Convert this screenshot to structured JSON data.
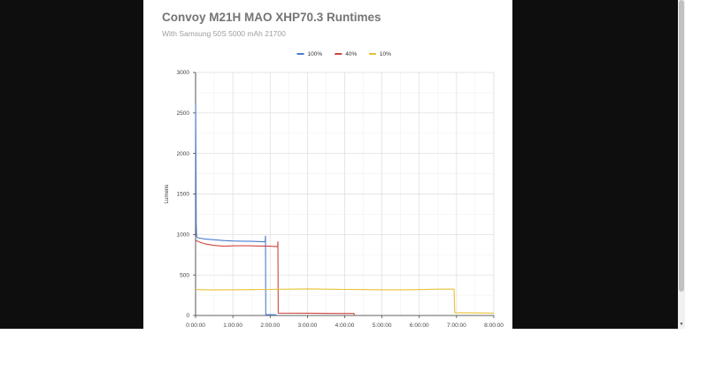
{
  "chart_data": {
    "type": "line",
    "title": "Convoy M21H MAO XHP70.3 Runtimes",
    "subtitle": "With Samsung 50S 5000 mAh 21700",
    "xlabel": "",
    "ylabel": "Lumens",
    "xlim": [
      "0:00:00",
      "8:00:00"
    ],
    "ylim": [
      0,
      3000
    ],
    "x_ticks": [
      "0:00:00",
      "1:00:00",
      "2:00:00",
      "3:00:00",
      "4:00:00",
      "5:00:00",
      "6:00:00",
      "7:00:00",
      "8:00:00"
    ],
    "y_ticks": [
      "0",
      "500",
      "1000",
      "1500",
      "2000",
      "2500",
      "3000"
    ],
    "grid": true,
    "legend_position": "top-center",
    "series": [
      {
        "name": "100%",
        "color": "#4a7bd0",
        "points": [
          [
            "0:00:00",
            2600
          ],
          [
            "0:00:05",
            2560
          ],
          [
            "0:00:20",
            2300
          ],
          [
            "0:00:40",
            1700
          ],
          [
            "0:01:00",
            1150
          ],
          [
            "0:01:30",
            980
          ],
          [
            "0:03:00",
            960
          ],
          [
            "0:15:00",
            945
          ],
          [
            "0:30:00",
            935
          ],
          [
            "0:45:00",
            925
          ],
          [
            "1:00:00",
            920
          ],
          [
            "1:15:00",
            918
          ],
          [
            "1:30:00",
            915
          ],
          [
            "1:45:00",
            912
          ],
          [
            "1:52:00",
            910
          ],
          [
            "1:52:30",
            980
          ],
          [
            "1:53:00",
            10
          ],
          [
            "2:00:00",
            10
          ],
          [
            "2:10:00",
            8
          ]
        ]
      },
      {
        "name": "40%",
        "color": "#d0453f",
        "points": [
          [
            "0:00:00",
            930
          ],
          [
            "0:05:00",
            910
          ],
          [
            "0:15:00",
            885
          ],
          [
            "0:30:00",
            865
          ],
          [
            "0:45:00",
            855
          ],
          [
            "1:00:00",
            860
          ],
          [
            "1:15:00",
            862
          ],
          [
            "1:30:00",
            860
          ],
          [
            "1:45:00",
            858
          ],
          [
            "2:00:00",
            855
          ],
          [
            "2:12:00",
            850
          ],
          [
            "2:12:30",
            910
          ],
          [
            "2:13:00",
            30
          ],
          [
            "3:00:00",
            28
          ],
          [
            "4:00:00",
            25
          ],
          [
            "4:15:00",
            25
          ],
          [
            "4:15:30",
            5
          ]
        ]
      },
      {
        "name": "10%",
        "color": "#e8c233",
        "points": [
          [
            "0:00:00",
            320
          ],
          [
            "0:30:00",
            315
          ],
          [
            "1:00:00",
            318
          ],
          [
            "1:30:00",
            320
          ],
          [
            "2:00:00",
            322
          ],
          [
            "2:30:00",
            325
          ],
          [
            "3:00:00",
            328
          ],
          [
            "3:30:00",
            325
          ],
          [
            "4:00:00",
            322
          ],
          [
            "4:30:00",
            320
          ],
          [
            "5:00:00",
            318
          ],
          [
            "5:30:00",
            318
          ],
          [
            "6:00:00",
            320
          ],
          [
            "6:30:00",
            325
          ],
          [
            "6:56:00",
            325
          ],
          [
            "6:57:00",
            35
          ],
          [
            "7:30:00",
            32
          ],
          [
            "8:00:00",
            30
          ]
        ]
      }
    ]
  }
}
